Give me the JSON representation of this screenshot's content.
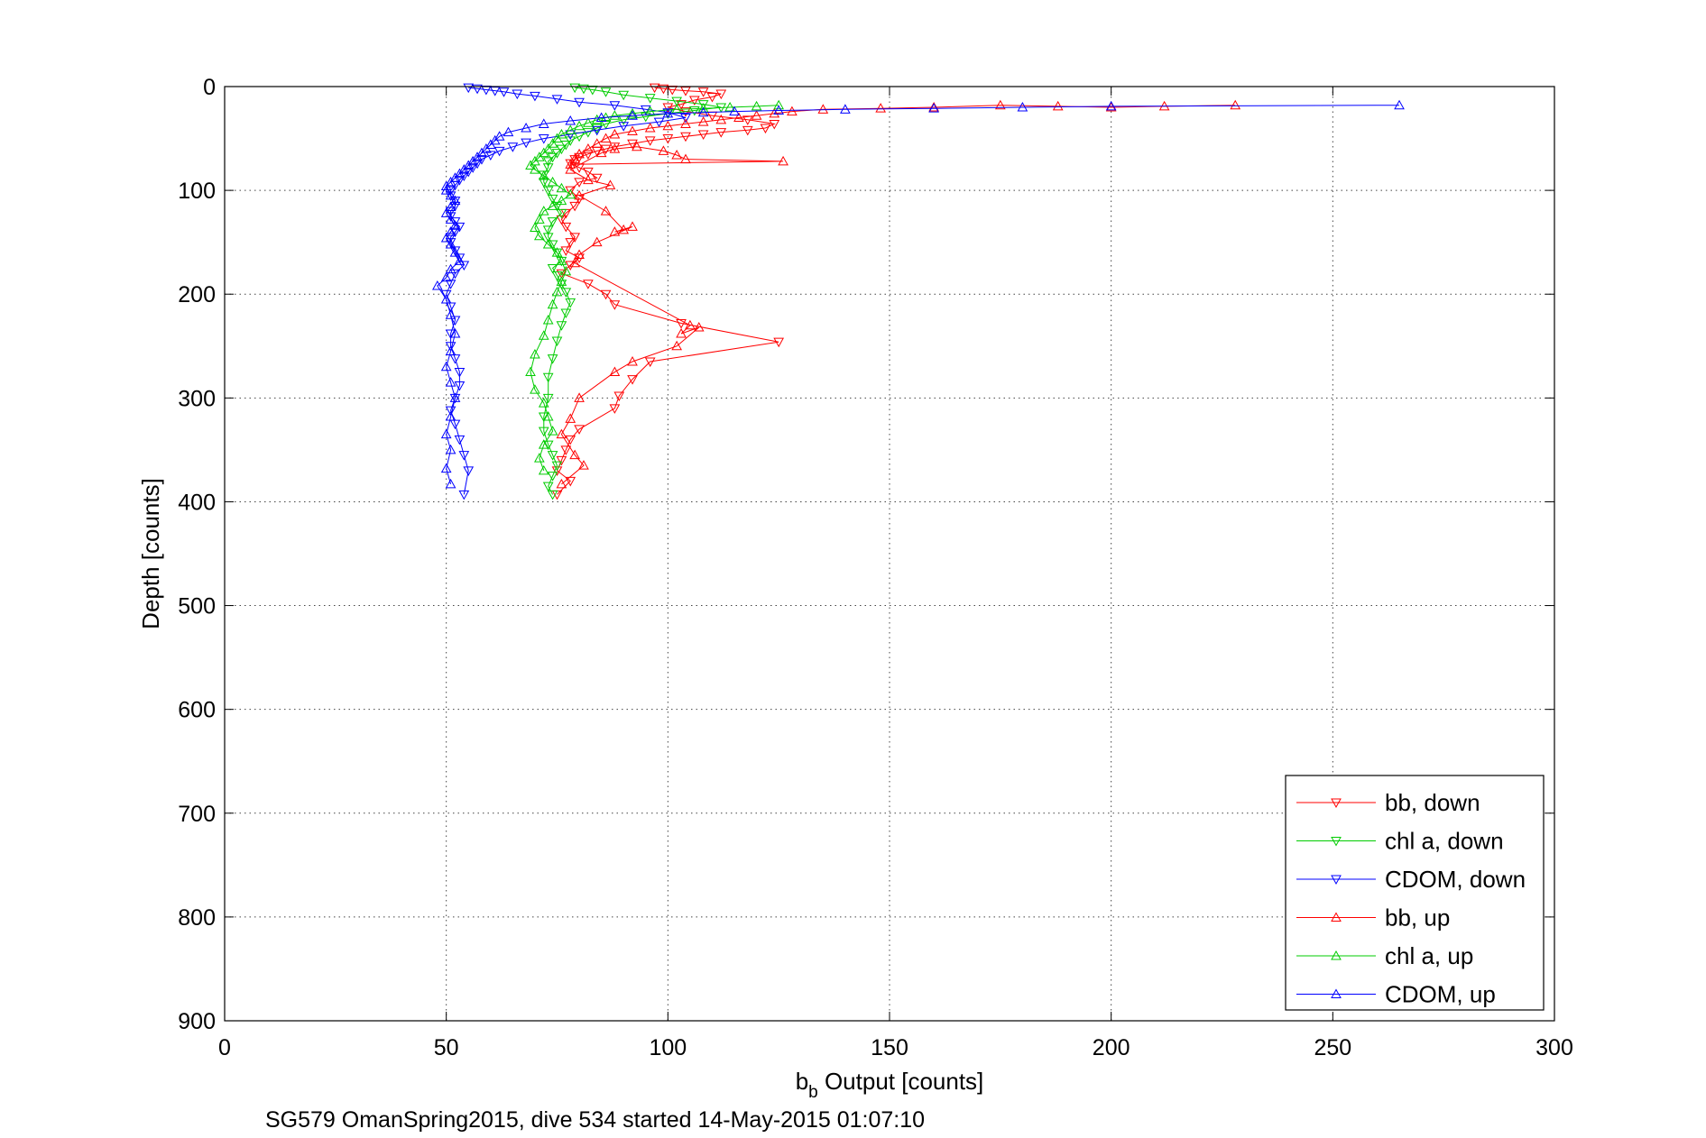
{
  "chart_data": {
    "type": "scatter",
    "title": "",
    "xlabel_main": "b",
    "xlabel_sub": "b",
    "xlabel_rest": " Output [counts]",
    "ylabel": "Depth [counts]",
    "caption": "SG579 OmanSpring2015, dive 534 started 14-May-2015 01:07:10",
    "xlim": [
      0,
      300
    ],
    "ylim": [
      0,
      900
    ],
    "y_reversed": true,
    "grid": true,
    "legend_position": "bottom-right",
    "xticks": [
      "0",
      "50",
      "100",
      "150",
      "200",
      "250",
      "300"
    ],
    "yticks": [
      "0",
      "100",
      "200",
      "300",
      "400",
      "500",
      "600",
      "700",
      "800",
      "900"
    ],
    "series": [
      {
        "name": "bb, down",
        "color": "#ff0000",
        "marker": "triangle-down",
        "x": [
          97,
          99,
          101,
          104,
          108,
          112,
          110,
          106,
          103,
          100,
          104,
          110,
          118,
          124,
          122,
          118,
          112,
          108,
          104,
          100,
          96,
          92,
          88,
          86,
          84,
          82,
          80,
          79,
          78,
          80,
          82,
          84,
          80,
          78,
          80,
          79,
          77,
          76,
          77,
          79,
          78,
          77,
          80,
          78,
          76,
          82,
          86,
          88,
          103,
          125,
          96,
          92,
          89,
          88,
          80,
          78,
          77,
          76,
          75,
          78,
          75
        ],
        "y": [
          1,
          2,
          3,
          4,
          5,
          7,
          10,
          13,
          17,
          20,
          24,
          28,
          32,
          36,
          40,
          42,
          44,
          46,
          48,
          50,
          52,
          55,
          58,
          60,
          62,
          65,
          68,
          70,
          74,
          78,
          82,
          88,
          92,
          100,
          108,
          115,
          122,
          128,
          135,
          145,
          150,
          158,
          165,
          172,
          180,
          190,
          200,
          210,
          228,
          246,
          265,
          282,
          298,
          310,
          330,
          340,
          350,
          360,
          370,
          380,
          393
        ]
      },
      {
        "name": "chl a, down",
        "color": "#00cc00",
        "marker": "triangle-down",
        "x": [
          79,
          81,
          83,
          86,
          90,
          96,
          102,
          108,
          112,
          106,
          100,
          95,
          90,
          86,
          84,
          82,
          80,
          78,
          77,
          76,
          75,
          74,
          73,
          73,
          72,
          72,
          73,
          74,
          75,
          76,
          74,
          73,
          73,
          74,
          75,
          76,
          74,
          75,
          76,
          77,
          78,
          77,
          76,
          75,
          74,
          73,
          73,
          72,
          72,
          73,
          74,
          75,
          74,
          73,
          74
        ],
        "y": [
          1,
          2,
          3,
          5,
          8,
          11,
          14,
          17,
          20,
          23,
          26,
          29,
          32,
          36,
          40,
          44,
          48,
          52,
          56,
          60,
          64,
          68,
          72,
          78,
          85,
          92,
          100,
          108,
          115,
          122,
          130,
          138,
          145,
          152,
          160,
          168,
          175,
          182,
          190,
          198,
          208,
          218,
          230,
          245,
          262,
          280,
          300,
          318,
          332,
          345,
          355,
          365,
          375,
          385,
          393
        ]
      },
      {
        "name": "CDOM, down",
        "color": "#0000ff",
        "marker": "triangle-down",
        "x": [
          55,
          57,
          59,
          61,
          63,
          66,
          70,
          75,
          80,
          88,
          95,
          100,
          104,
          98,
          90,
          84,
          78,
          72,
          68,
          65,
          62,
          60,
          58,
          57,
          56,
          55,
          54,
          53,
          52,
          51,
          51,
          52,
          52,
          51,
          51,
          52,
          53,
          52,
          51,
          51,
          52,
          53,
          54,
          52,
          51,
          50,
          51,
          52,
          51,
          51,
          52,
          53,
          53,
          52,
          51,
          52,
          53,
          54,
          55,
          54
        ],
        "y": [
          1,
          2,
          3,
          4,
          5,
          7,
          9,
          12,
          15,
          18,
          22,
          25,
          30,
          34,
          38,
          42,
          46,
          50,
          54,
          58,
          62,
          66,
          70,
          74,
          78,
          82,
          86,
          90,
          95,
          100,
          105,
          110,
          115,
          120,
          125,
          130,
          135,
          140,
          145,
          150,
          158,
          165,
          172,
          180,
          190,
          200,
          212,
          225,
          238,
          250,
          262,
          275,
          288,
          300,
          312,
          325,
          340,
          355,
          370,
          393
        ]
      },
      {
        "name": "bb, up",
        "color": "#ff0000",
        "marker": "triangle-up",
        "x": [
          228,
          212,
          200,
          188,
          175,
          160,
          148,
          135,
          128,
          124,
          120,
          116,
          112,
          108,
          104,
          100,
          96,
          92,
          88,
          86,
          84,
          82,
          80,
          79,
          78,
          126,
          104,
          102,
          99,
          93,
          88,
          85,
          78,
          82,
          87,
          80,
          86,
          90,
          88,
          92,
          84,
          80,
          79,
          105,
          103,
          107,
          102,
          92,
          88,
          80,
          78,
          76,
          79,
          81,
          76
        ],
        "y": [
          18,
          19,
          20,
          19,
          18,
          20,
          21,
          22,
          24,
          26,
          28,
          30,
          32,
          34,
          36,
          38,
          40,
          43,
          46,
          50,
          55,
          60,
          65,
          70,
          75,
          72,
          70,
          66,
          62,
          58,
          60,
          64,
          80,
          90,
          95,
          105,
          120,
          138,
          140,
          135,
          150,
          162,
          170,
          230,
          238,
          232,
          250,
          265,
          275,
          300,
          320,
          335,
          355,
          365,
          383
        ]
      },
      {
        "name": "chl a, up",
        "color": "#00cc00",
        "marker": "triangle-up",
        "x": [
          125,
          120,
          114,
          108,
          102,
          96,
          92,
          88,
          86,
          84,
          82,
          80,
          78,
          76,
          75,
          74,
          73,
          72,
          71,
          70,
          69,
          70,
          72,
          74,
          76,
          78,
          76,
          74,
          72,
          71,
          70,
          71,
          73,
          75,
          76,
          77,
          76,
          75,
          74,
          73,
          72,
          70,
          69,
          70,
          72,
          73,
          74,
          72,
          71,
          72
        ],
        "y": [
          18,
          19,
          20,
          21,
          22,
          24,
          26,
          28,
          30,
          32,
          35,
          38,
          42,
          46,
          50,
          55,
          60,
          64,
          68,
          72,
          76,
          80,
          86,
          92,
          98,
          104,
          110,
          115,
          120,
          128,
          136,
          144,
          152,
          160,
          168,
          178,
          188,
          198,
          210,
          225,
          240,
          258,
          275,
          292,
          305,
          318,
          332,
          345,
          358,
          370
        ]
      },
      {
        "name": "CDOM, up",
        "color": "#0000ff",
        "marker": "triangle-up",
        "x": [
          265,
          200,
          180,
          160,
          140,
          125,
          115,
          108,
          100,
          92,
          85,
          78,
          72,
          68,
          64,
          62,
          61,
          60,
          59,
          58,
          57,
          56,
          55,
          54,
          53,
          52,
          51,
          50,
          50,
          51,
          52,
          51,
          50,
          51,
          52,
          51,
          50,
          51,
          52,
          53,
          51,
          50,
          48,
          50,
          51,
          52,
          51,
          50,
          51,
          52,
          51,
          50,
          51,
          50,
          51
        ],
        "y": [
          18,
          19,
          20,
          21,
          22,
          23,
          24,
          25,
          26,
          28,
          30,
          33,
          36,
          40,
          44,
          48,
          52,
          56,
          60,
          64,
          68,
          72,
          76,
          80,
          84,
          88,
          92,
          96,
          100,
          105,
          110,
          116,
          122,
          128,
          134,
          140,
          146,
          152,
          160,
          168,
          176,
          184,
          192,
          205,
          220,
          238,
          255,
          270,
          285,
          300,
          318,
          335,
          350,
          368,
          383
        ]
      }
    ]
  }
}
